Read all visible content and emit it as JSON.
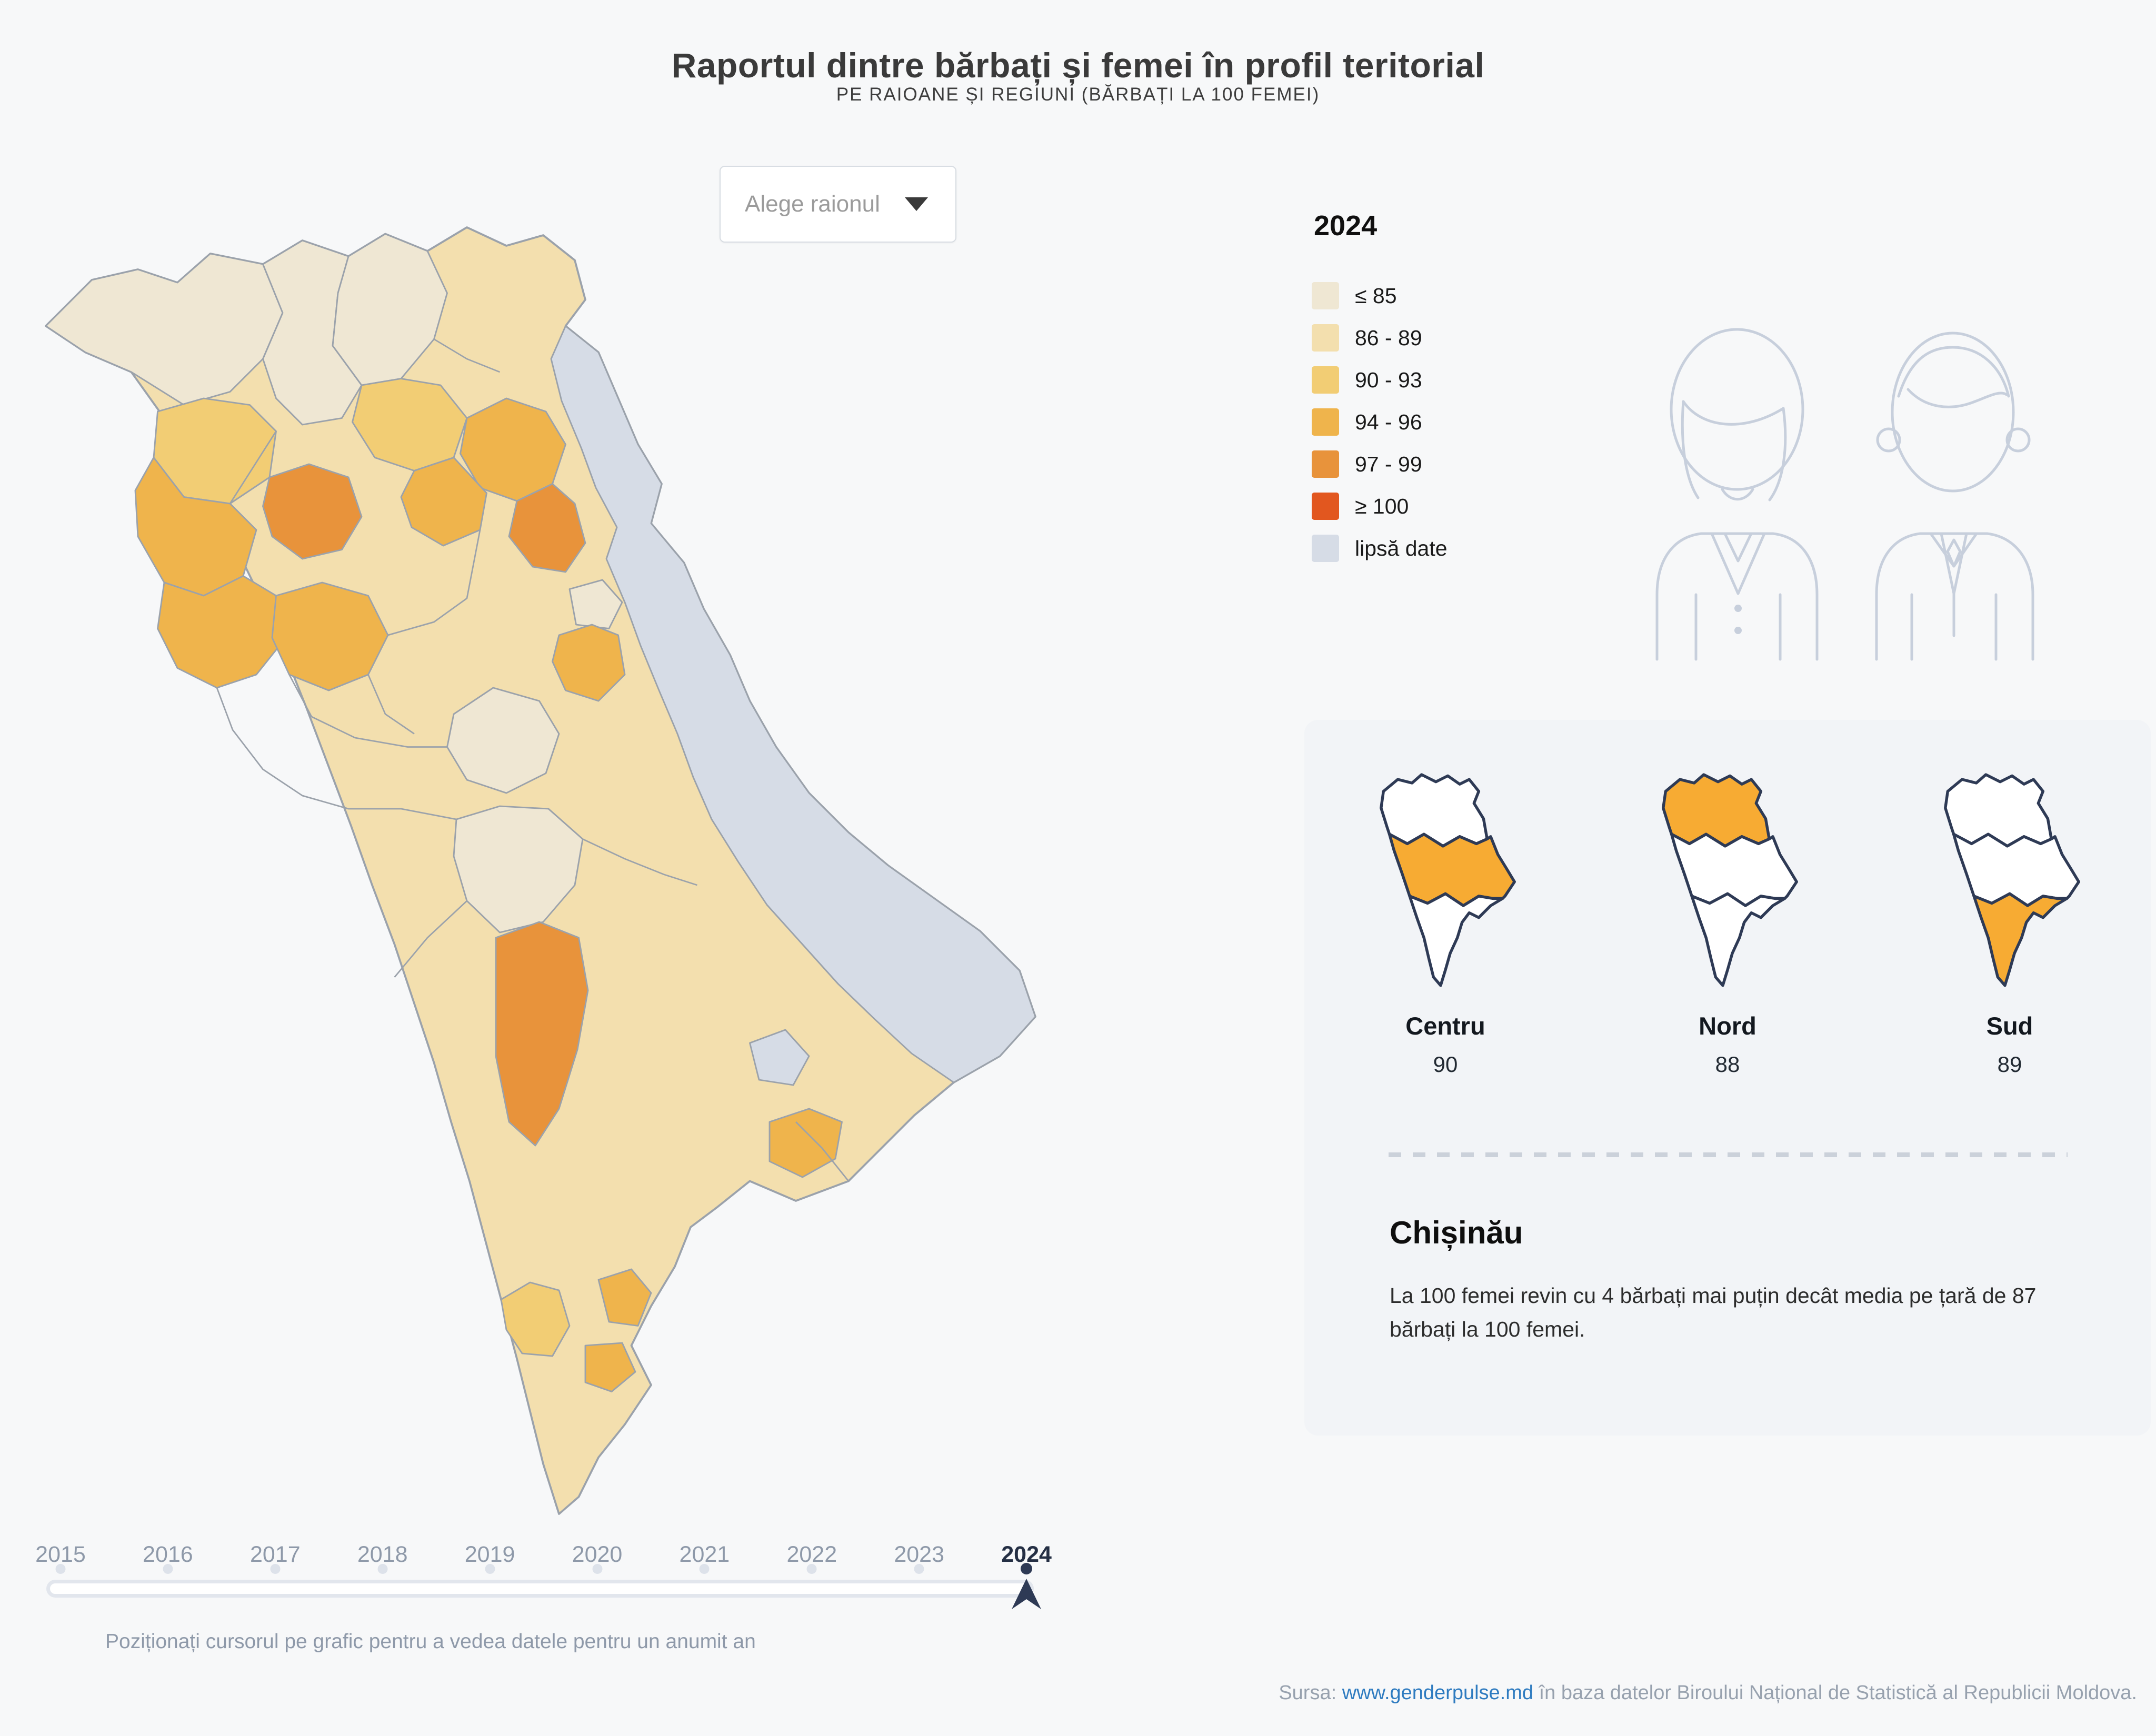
{
  "page": {
    "background": "#f7f8f9"
  },
  "header": {
    "title": "Raportul dintre bărbați și femei în profil teritorial",
    "subtitle": "PE RAIOANE ȘI REGIUNI (BĂRBAȚI LA 100 FEMEI)"
  },
  "controls": {
    "district_select": {
      "placeholder": "Alege raionul"
    }
  },
  "legend": {
    "year": "2024",
    "bin_colors": {
      "le85": "#efe7d3",
      "b86": "#f3dfae",
      "b90": "#f2cd74",
      "b94": "#efb44c",
      "b97": "#e8933b",
      "ge100": "#e2571f",
      "nodata": "#d6dce6"
    },
    "items": [
      {
        "bin": "le85",
        "label": "≤ 85"
      },
      {
        "bin": "b86",
        "label": "86 - 89"
      },
      {
        "bin": "b90",
        "label": "90 - 93"
      },
      {
        "bin": "b94",
        "label": "94 - 96"
      },
      {
        "bin": "b97",
        "label": "97 - 99"
      },
      {
        "bin": "ge100",
        "label": "≥ 100"
      },
      {
        "bin": "nodata",
        "label": "lipsă date"
      }
    ]
  },
  "map": {
    "border_color": "#9ba2ab",
    "regions": {
      "base": "b86",
      "transnistria": "nodata",
      "bender": "nodata",
      "nw-briceni": "le85",
      "donduseni": "le85",
      "n-center": "le85",
      "chisinau": "le85",
      "south-center": "le85",
      "enclave-center": "le85",
      "riscani": "b90",
      "drochia": "b90",
      "south-gold": "b90",
      "glodeni": "b94",
      "ungheni": "b94",
      "calarasi": "b94",
      "floresti": "b94",
      "telenesti": "b94",
      "criuleni": "b94",
      "causeni": "b94",
      "gagauz-1": "b94",
      "gagauz-2": "b94",
      "balti": "b97",
      "rezina": "b97",
      "cimislia": "b97"
    }
  },
  "regions_panel": {
    "background": "#f2f4f7",
    "highlight_color": "#f7ab33",
    "outline_color": "#2e3a55",
    "cards": [
      {
        "name": "Centru",
        "value": "90",
        "highlight": "centru"
      },
      {
        "name": "Nord",
        "value": "88",
        "highlight": "nord"
      },
      {
        "name": "Sud",
        "value": "89",
        "highlight": "sud"
      }
    ],
    "capital": {
      "name": "Chișinău",
      "description": "La 100 femei revin cu 4 bărbați mai puțin decât media pe țară de 87 bărbați la 100 femei."
    }
  },
  "timeline": {
    "years": [
      "2015",
      "2016",
      "2017",
      "2018",
      "2019",
      "2020",
      "2021",
      "2022",
      "2023",
      "2024"
    ],
    "selected": "2024",
    "marker_color": "#2e3a55",
    "hint": "Poziționați cursorul pe grafic pentru a vedea datele pentru un anumit an"
  },
  "footer": {
    "prefix": "Sursa:",
    "link": "www.genderpulse.md",
    "suffix": "în baza datelor Biroului Național de Statistică al Republicii Moldova."
  },
  "chart_data": {
    "type": "choropleth",
    "title": "Raportul dintre bărbați și femei în profil teritorial",
    "subtitle": "PE RAIOANE ȘI REGIUNI (BĂRBAȚI LA 100 FEMEI)",
    "unit": "bărbați la 100 femei",
    "selected_year": 2024,
    "years_range": [
      2015,
      2024
    ],
    "bins": [
      {
        "label": "≤ 85",
        "color": "#efe7d3"
      },
      {
        "label": "86 - 89",
        "color": "#f3dfae"
      },
      {
        "label": "90 - 93",
        "color": "#f2cd74"
      },
      {
        "label": "94 - 96",
        "color": "#efb44c"
      },
      {
        "label": "97 - 99",
        "color": "#e8933b"
      },
      {
        "label": "≥ 100",
        "color": "#e2571f"
      },
      {
        "label": "lipsă date",
        "color": "#d6dce6"
      }
    ],
    "regions": [
      {
        "name": "Centru",
        "value": 90
      },
      {
        "name": "Nord",
        "value": 88
      },
      {
        "name": "Sud",
        "value": 89
      }
    ],
    "national_average": 87,
    "chisinau_vs_average": -4,
    "legend_position": "right"
  }
}
